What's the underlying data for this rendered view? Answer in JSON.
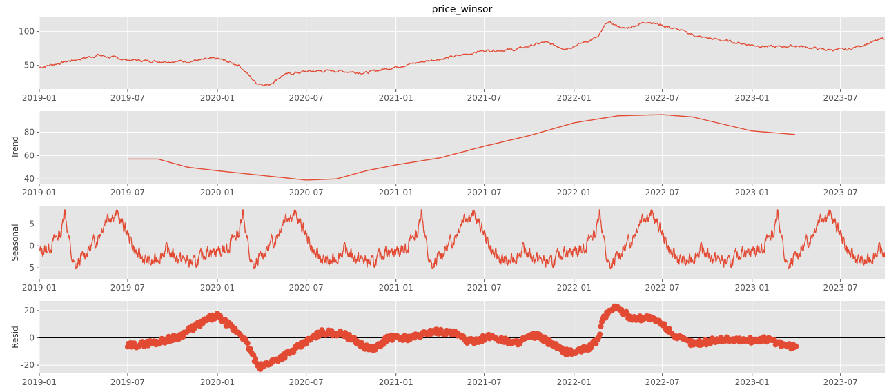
{
  "chart_data": [
    {
      "type": "line",
      "title": "price_winsor",
      "ylabel": "",
      "ylim": [
        15,
        122
      ],
      "yticks": [
        50,
        100
      ],
      "xlim": [
        "2019-01-01",
        "2023-09-30"
      ],
      "xticks": [
        "2019-01",
        "2019-07",
        "2020-01",
        "2020-07",
        "2021-01",
        "2021-07",
        "2022-01",
        "2022-07",
        "2023-01",
        "2023-07"
      ],
      "series": [
        {
          "color": "#E24A33",
          "x": [
            "2019-01-01",
            "2019-03-01",
            "2019-05-01",
            "2019-07-01",
            "2019-09-01",
            "2019-11-01",
            "2020-01-01",
            "2020-02-15",
            "2020-03-20",
            "2020-04-15",
            "2020-05-15",
            "2020-07-01",
            "2020-09-01",
            "2020-11-01",
            "2021-01-01",
            "2021-03-01",
            "2021-05-01",
            "2021-07-01",
            "2021-09-01",
            "2021-11-01",
            "2021-12-15",
            "2022-01-15",
            "2022-02-20",
            "2022-03-10",
            "2022-04-15",
            "2022-06-01",
            "2022-07-01",
            "2022-08-01",
            "2022-09-15",
            "2022-11-01",
            "2023-01-01",
            "2023-02-15",
            "2023-04-01",
            "2023-06-01",
            "2023-07-15",
            "2023-09-30"
          ],
          "values": [
            47,
            56,
            65,
            58,
            56,
            56,
            60,
            50,
            24,
            21,
            36,
            41,
            42,
            39,
            48,
            56,
            63,
            72,
            73,
            84,
            75,
            82,
            92,
            114,
            104,
            115,
            109,
            103,
            92,
            87,
            80,
            77,
            79,
            73,
            73,
            90
          ]
        }
      ]
    },
    {
      "type": "line",
      "title": "",
      "ylabel": "Trend",
      "ylim": [
        36,
        98
      ],
      "yticks": [
        40,
        60,
        80
      ],
      "xlim": [
        "2019-01-01",
        "2023-09-30"
      ],
      "xticks": [
        "2019-01",
        "2019-07",
        "2020-01",
        "2020-07",
        "2021-01",
        "2021-07",
        "2022-01",
        "2022-07",
        "2023-01",
        "2023-07"
      ],
      "series": [
        {
          "color": "#E24A33",
          "x": [
            "2019-07-01",
            "2019-09-01",
            "2019-11-01",
            "2020-01-01",
            "2020-04-01",
            "2020-07-01",
            "2020-09-01",
            "2020-11-01",
            "2021-01-01",
            "2021-04-01",
            "2021-07-01",
            "2021-10-01",
            "2022-01-01",
            "2022-04-01",
            "2022-07-01",
            "2022-09-01",
            "2022-11-01",
            "2023-01-01",
            "2023-04-01"
          ],
          "values": [
            57,
            57,
            50,
            47,
            43,
            39,
            40,
            47,
            52,
            58,
            68,
            77,
            88,
            94,
            95,
            93,
            87,
            81,
            78
          ]
        }
      ]
    },
    {
      "type": "line",
      "title": "",
      "ylabel": "Seasonal",
      "ylim": [
        -7.5,
        9
      ],
      "yticks": [
        -5,
        0,
        5
      ],
      "xlim": [
        "2019-01-01",
        "2023-09-30"
      ],
      "xticks": [
        "2019-01",
        "2019-07",
        "2020-01",
        "2020-07",
        "2021-01",
        "2021-07",
        "2022-01",
        "2022-07",
        "2023-01",
        "2023-07"
      ],
      "period_profile": {
        "days": [
          0,
          20,
          35,
          45,
          52,
          60,
          68,
          75,
          85,
          100,
          120,
          140,
          160,
          180,
          200,
          230,
          260,
          290,
          320,
          345,
          365
        ],
        "values": [
          -1.5,
          -0.5,
          2,
          3,
          8.5,
          2,
          -4,
          -5,
          -3,
          -1,
          2,
          7,
          7,
          3,
          -2,
          -4,
          -1,
          -3,
          -4,
          -1,
          -1.5
        ]
      },
      "series": [
        {
          "color": "#E24A33"
        }
      ]
    },
    {
      "type": "scatter",
      "title": "",
      "ylabel": "Resid",
      "ylim": [
        -26,
        27
      ],
      "yticks": [
        -20,
        0,
        20
      ],
      "zero_line": true,
      "xlim": [
        "2019-01-01",
        "2023-09-30"
      ],
      "xticks": [
        "2019-01",
        "2019-07",
        "2020-01",
        "2020-07",
        "2021-01",
        "2021-07",
        "2022-01",
        "2022-07",
        "2023-01",
        "2023-07"
      ],
      "series": [
        {
          "color": "#E24A33",
          "x": [
            "2019-07-01",
            "2019-09-01",
            "2019-10-15",
            "2019-11-15",
            "2019-12-15",
            "2020-01-01",
            "2020-02-01",
            "2020-02-20",
            "2020-03-10",
            "2020-03-25",
            "2020-05-01",
            "2020-06-01",
            "2020-07-01",
            "2020-08-01",
            "2020-09-15",
            "2020-11-01",
            "2020-11-20",
            "2020-12-15",
            "2021-02-01",
            "2021-03-20",
            "2021-05-01",
            "2021-06-01",
            "2021-07-15",
            "2021-09-01",
            "2021-10-15",
            "2021-11-20",
            "2021-12-10",
            "2022-01-01",
            "2022-02-01",
            "2022-02-20",
            "2022-03-01",
            "2022-03-25",
            "2022-05-01",
            "2022-06-01",
            "2022-07-01",
            "2022-08-01",
            "2022-09-01",
            "2022-10-01",
            "2022-11-01",
            "2023-01-01",
            "2023-02-01",
            "2023-03-01",
            "2023-04-01"
          ],
          "values": [
            -6,
            -3,
            1,
            8,
            14,
            16,
            7,
            2,
            -10,
            -22,
            -16,
            -10,
            -3,
            4,
            3,
            -7,
            -8,
            0,
            0,
            5,
            3,
            -3,
            1,
            -4,
            2,
            -5,
            -10,
            -11,
            -7,
            -1,
            14,
            23,
            14,
            15,
            10,
            0,
            -4,
            -3,
            -1,
            -2,
            -1,
            -5,
            -7
          ]
        }
      ]
    }
  ]
}
